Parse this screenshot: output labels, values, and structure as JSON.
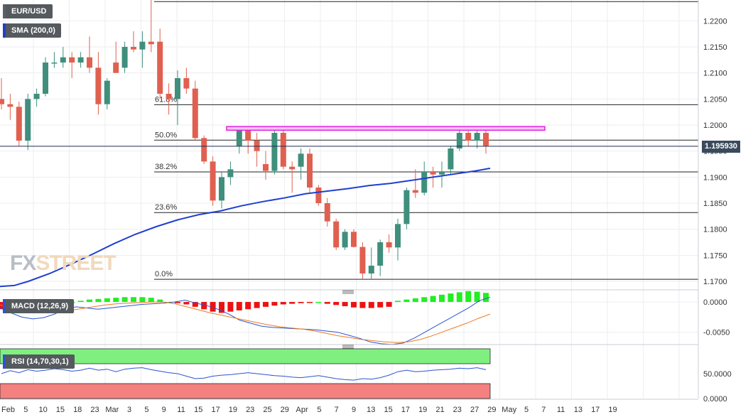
{
  "symbol": "EUR/USD",
  "indicators": {
    "sma_label": "SMA (200,0)",
    "macd_label": "MACD (12,26,9)",
    "rsi_label": "RSI (14,70,30,1)"
  },
  "current_price": "1.195930",
  "watermark": {
    "part1": "FX",
    "part2": "STREET"
  },
  "colors": {
    "bull": "#3f8f7c",
    "bear": "#e06050",
    "sma": "#1f3fd0",
    "resistance": "#e020e0",
    "rsi_overbought": "#7ff07f",
    "rsi_oversold": "#f58080",
    "macd_pos": "#22ee22",
    "macd_neg": "#ee1111",
    "macd_line": "#2a55d0",
    "signal_line": "#f07a20"
  },
  "chart_data": [
    {
      "type": "candlestick",
      "x_ticks": [
        "Feb",
        "5",
        "10",
        "15",
        "18",
        "23",
        "Mar",
        "3",
        "5",
        "9",
        "11",
        "15",
        "17",
        "19",
        "23",
        "25",
        "29",
        "Apr",
        "5",
        "7",
        "9",
        "13",
        "15",
        "17",
        "19",
        "21",
        "23",
        "27",
        "29",
        "May",
        "5",
        "7",
        "11",
        "13",
        "17",
        "19"
      ],
      "y_ticks": [
        "1.2200",
        "1.2150",
        "1.2100",
        "1.2050",
        "1.2000",
        "1.1950",
        "1.1900",
        "1.1850",
        "1.1800",
        "1.1750",
        "1.1700"
      ],
      "ylim": [
        1.1685,
        1.224
      ],
      "fib_levels": [
        {
          "label": "0.0%",
          "value": 1.1704
        },
        {
          "label": "23.6%",
          "value": 1.1832
        },
        {
          "label": "38.2%",
          "value": 1.191
        },
        {
          "label": "50.0%",
          "value": 1.1971
        },
        {
          "label": "61.8%",
          "value": 1.2039
        },
        {
          "label": "",
          "value": 1.2237
        }
      ],
      "resistance_zone": [
        1.199,
        1.1997
      ],
      "current_price": 1.19593,
      "candles": [
        {
          "o": 1.205,
          "h": 1.209,
          "l": 1.203,
          "c": 1.204
        },
        {
          "o": 1.204,
          "h": 1.206,
          "l": 1.201,
          "c": 1.2035
        },
        {
          "o": 1.2035,
          "h": 1.2045,
          "l": 1.196,
          "c": 1.197
        },
        {
          "o": 1.197,
          "h": 1.206,
          "l": 1.1952,
          "c": 1.205
        },
        {
          "o": 1.205,
          "h": 1.207,
          "l": 1.2035,
          "c": 1.206
        },
        {
          "o": 1.206,
          "h": 1.213,
          "l": 1.2055,
          "c": 1.212
        },
        {
          "o": 1.212,
          "h": 1.214,
          "l": 1.211,
          "c": 1.212
        },
        {
          "o": 1.212,
          "h": 1.215,
          "l": 1.211,
          "c": 1.213
        },
        {
          "o": 1.213,
          "h": 1.214,
          "l": 1.209,
          "c": 1.212
        },
        {
          "o": 1.212,
          "h": 1.214,
          "l": 1.211,
          "c": 1.213
        },
        {
          "o": 1.213,
          "h": 1.217,
          "l": 1.21,
          "c": 1.211
        },
        {
          "o": 1.211,
          "h": 1.214,
          "l": 1.202,
          "c": 1.204
        },
        {
          "o": 1.204,
          "h": 1.209,
          "l": 1.203,
          "c": 1.2085
        },
        {
          "o": 1.212,
          "h": 1.216,
          "l": 1.21,
          "c": 1.21
        },
        {
          "o": 1.211,
          "h": 1.216,
          "l": 1.21,
          "c": 1.215
        },
        {
          "o": 1.215,
          "h": 1.218,
          "l": 1.214,
          "c": 1.2145
        },
        {
          "o": 1.2145,
          "h": 1.218,
          "l": 1.211,
          "c": 1.216
        },
        {
          "o": 1.216,
          "h": 1.224,
          "l": 1.214,
          "c": 1.2155
        },
        {
          "o": 1.216,
          "h": 1.2185,
          "l": 1.205,
          "c": 1.206
        },
        {
          "o": 1.206,
          "h": 1.208,
          "l": 1.202,
          "c": 1.205
        },
        {
          "o": 1.205,
          "h": 1.2105,
          "l": 1.2,
          "c": 1.209
        },
        {
          "o": 1.209,
          "h": 1.211,
          "l": 1.206,
          "c": 1.207
        },
        {
          "o": 1.207,
          "h": 1.2085,
          "l": 1.197,
          "c": 1.1975
        },
        {
          "o": 1.1975,
          "h": 1.198,
          "l": 1.1925,
          "c": 1.193
        },
        {
          "o": 1.193,
          "h": 1.194,
          "l": 1.1845,
          "c": 1.1855
        },
        {
          "o": 1.1855,
          "h": 1.191,
          "l": 1.184,
          "c": 1.19
        },
        {
          "o": 1.19,
          "h": 1.193,
          "l": 1.1885,
          "c": 1.1915
        },
        {
          "o": 1.196,
          "h": 1.1995,
          "l": 1.1945,
          "c": 1.199
        },
        {
          "o": 1.199,
          "h": 1.1995,
          "l": 1.1945,
          "c": 1.197
        },
        {
          "o": 1.197,
          "h": 1.1985,
          "l": 1.192,
          "c": 1.195
        },
        {
          "o": 1.1925,
          "h": 1.195,
          "l": 1.1895,
          "c": 1.1912
        },
        {
          "o": 1.1912,
          "h": 1.199,
          "l": 1.1905,
          "c": 1.1985
        },
        {
          "o": 1.1985,
          "h": 1.199,
          "l": 1.1915,
          "c": 1.192
        },
        {
          "o": 1.192,
          "h": 1.193,
          "l": 1.187,
          "c": 1.1915
        },
        {
          "o": 1.192,
          "h": 1.1955,
          "l": 1.1895,
          "c": 1.1945
        },
        {
          "o": 1.1945,
          "h": 1.1955,
          "l": 1.187,
          "c": 1.188
        },
        {
          "o": 1.188,
          "h": 1.1885,
          "l": 1.1845,
          "c": 1.185
        },
        {
          "o": 1.185,
          "h": 1.186,
          "l": 1.1805,
          "c": 1.1815
        },
        {
          "o": 1.1815,
          "h": 1.182,
          "l": 1.176,
          "c": 1.1765
        },
        {
          "o": 1.1765,
          "h": 1.18,
          "l": 1.176,
          "c": 1.1795
        },
        {
          "o": 1.1795,
          "h": 1.18,
          "l": 1.1765,
          "c": 1.1766
        },
        {
          "o": 1.1766,
          "h": 1.1775,
          "l": 1.1705,
          "c": 1.1715
        },
        {
          "o": 1.1715,
          "h": 1.1765,
          "l": 1.1705,
          "c": 1.173
        },
        {
          "o": 1.173,
          "h": 1.178,
          "l": 1.171,
          "c": 1.1775
        },
        {
          "o": 1.1775,
          "h": 1.179,
          "l": 1.1755,
          "c": 1.1765
        },
        {
          "o": 1.1765,
          "h": 1.182,
          "l": 1.174,
          "c": 1.181
        },
        {
          "o": 1.181,
          "h": 1.188,
          "l": 1.18,
          "c": 1.1875
        },
        {
          "o": 1.1875,
          "h": 1.1915,
          "l": 1.186,
          "c": 1.187
        },
        {
          "o": 1.187,
          "h": 1.193,
          "l": 1.1865,
          "c": 1.191
        },
        {
          "o": 1.191,
          "h": 1.192,
          "l": 1.188,
          "c": 1.1905
        },
        {
          "o": 1.1905,
          "h": 1.193,
          "l": 1.188,
          "c": 1.191
        },
        {
          "o": 1.1915,
          "h": 1.196,
          "l": 1.1905,
          "c": 1.1955
        },
        {
          "o": 1.1955,
          "h": 1.199,
          "l": 1.195,
          "c": 1.1985
        },
        {
          "o": 1.1985,
          "h": 1.1995,
          "l": 1.196,
          "c": 1.197
        },
        {
          "o": 1.197,
          "h": 1.1995,
          "l": 1.1955,
          "c": 1.1985
        },
        {
          "o": 1.1985,
          "h": 1.199,
          "l": 1.1945,
          "c": 1.196
        }
      ],
      "sma200": [
        [
          0,
          1.169
        ],
        [
          20,
          1.1692
        ],
        [
          40,
          1.17
        ],
        [
          70,
          1.1715
        ],
        [
          100,
          1.1733
        ],
        [
          130,
          1.1752
        ],
        [
          160,
          1.1772
        ],
        [
          190,
          1.179
        ],
        [
          220,
          1.1805
        ],
        [
          250,
          1.1818
        ],
        [
          280,
          1.1828
        ],
        [
          310,
          1.1835
        ],
        [
          340,
          1.1845
        ],
        [
          370,
          1.1853
        ],
        [
          400,
          1.186
        ],
        [
          430,
          1.1868
        ],
        [
          460,
          1.1873
        ],
        [
          490,
          1.1878
        ],
        [
          520,
          1.1884
        ],
        [
          550,
          1.1888
        ],
        [
          580,
          1.1894
        ],
        [
          610,
          1.19
        ],
        [
          640,
          1.1906
        ],
        [
          670,
          1.1912
        ],
        [
          690,
          1.1917
        ]
      ]
    },
    {
      "type": "bar",
      "name": "MACD",
      "y_ticks": [
        "0.0000",
        "-0.0050"
      ],
      "ylim": [
        -0.0068,
        0.0013
      ],
      "histogram": [
        -0.0012,
        -0.0008,
        -0.0004,
        -0.0002,
        0,
        0,
        0,
        0,
        0,
        0.0002,
        0.0004,
        0.0005,
        0.0006,
        0.0007,
        0.0008,
        0.0008,
        0.0008,
        0.0007,
        0.0004,
        0,
        -0.0002,
        -0.0004,
        -0.0008,
        -0.0012,
        -0.0016,
        -0.0018,
        -0.0016,
        -0.0014,
        -0.0012,
        -0.001,
        -0.0008,
        -0.0006,
        -0.0004,
        -0.0003,
        -0.0002,
        -0.0001,
        0,
        -0.0003,
        -0.0005,
        -0.0007,
        -0.0009,
        -0.001,
        -0.001,
        -0.0009,
        -0.0008,
        0.0002,
        0.0004,
        0.0006,
        0.0008,
        0.001,
        0.0012,
        0.0014,
        0.0016,
        0.0018,
        0.0017,
        0.0015
      ],
      "macd_line": [
        -0.001,
        -0.0018,
        -0.0025,
        -0.0028,
        -0.0026,
        -0.002,
        -0.0012,
        -0.0008,
        -0.001,
        -0.0012,
        -0.001,
        -0.0008,
        -0.0006,
        -0.0004,
        -0.0003,
        -0.0002,
        0,
        0.0003,
        -0.0002,
        -0.0006,
        -0.0012,
        -0.002,
        -0.003,
        -0.0035,
        -0.004,
        -0.0042,
        -0.0043,
        -0.0044,
        -0.0045,
        -0.0046,
        -0.0048,
        -0.005,
        -0.0055,
        -0.006,
        -0.0066,
        -0.0069,
        -0.007,
        -0.0068,
        -0.006,
        -0.005,
        -0.004,
        -0.003,
        -0.002,
        -0.001,
        0.0002,
        0.0008
      ],
      "signal_line": [
        -0.0005,
        -0.0009,
        -0.0013,
        -0.0016,
        -0.0017,
        -0.0016,
        -0.0014,
        -0.0011,
        -0.0008,
        -0.0005,
        -0.0003,
        -0.0002,
        -0.0001,
        0,
        0,
        -0.0003,
        -0.0008,
        -0.0013,
        -0.0018,
        -0.0022,
        -0.0026,
        -0.003,
        -0.0034,
        -0.0038,
        -0.0041,
        -0.0043,
        -0.0045,
        -0.0048,
        -0.0052,
        -0.0056,
        -0.0059,
        -0.0062,
        -0.0064,
        -0.0066,
        -0.0067,
        -0.0066,
        -0.0062,
        -0.0056,
        -0.0049,
        -0.0042,
        -0.0035,
        -0.0027,
        -0.002
      ]
    },
    {
      "type": "line",
      "name": "RSI",
      "y_ticks": [
        "50.0000",
        "0.0000"
      ],
      "ylim": [
        0,
        100
      ],
      "overbought": 70,
      "oversold": 30,
      "rsi": [
        50,
        56,
        52,
        58,
        55,
        57,
        60,
        58,
        55,
        57,
        61,
        57,
        59,
        54,
        59,
        61,
        62,
        58,
        55,
        52,
        50,
        45,
        40,
        41,
        45,
        47,
        48,
        50,
        52,
        50,
        48,
        46,
        45,
        43,
        42,
        44,
        46,
        43,
        40,
        38,
        37,
        40,
        39,
        42,
        47,
        54,
        57,
        54,
        55,
        57,
        58,
        59,
        61,
        60,
        62,
        58
      ]
    }
  ]
}
